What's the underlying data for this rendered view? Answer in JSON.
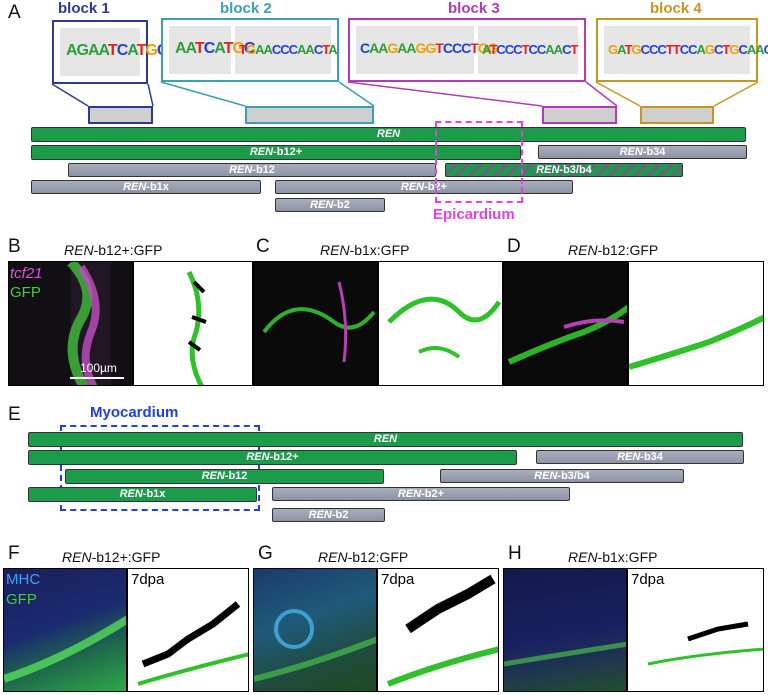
{
  "panelA": {
    "letter": "A",
    "blocks": [
      {
        "title": "block 1",
        "color": "#2b3a97",
        "seqs": [
          "AGAATCATGCT"
        ]
      },
      {
        "title": "block 2",
        "color": "#3aa0b4",
        "seqs": [
          "AATCATGC",
          "TGAACCCAACTA"
        ]
      },
      {
        "title": "block 3",
        "color": "#b03ab8",
        "seqs": [
          "CAAGAAGGTCCCTGG",
          "ATCCCTCCAACT"
        ]
      },
      {
        "title": "block 4",
        "color": "#c8961e",
        "seqs": [
          "GATGCCCTTCCAGCTGCAACC"
        ]
      }
    ],
    "bars": {
      "ren": "REN",
      "b12plus": "REN-b12+",
      "b34": "REN-b34",
      "b12": "REN-b12",
      "b3b4": "REN-b3/b4",
      "b1x": "REN-b1x",
      "b2plus": "REN-b2+",
      "b2": "REN-b2"
    },
    "epicardium_label": "Epicardium",
    "epicardium_color": "#e640e6"
  },
  "panelB": {
    "letter": "B",
    "title_italic": "REN",
    "title_rest": "-b12+:GFP",
    "channel1": "tcf21",
    "channel2": "GFP",
    "scale": "100µm"
  },
  "panelC": {
    "letter": "C",
    "title_italic": "REN",
    "title_rest": "-b1x:GFP"
  },
  "panelD": {
    "letter": "D",
    "title_italic": "REN",
    "title_rest": "-b12:GFP"
  },
  "panelE": {
    "letter": "E",
    "myocardium_label": "Myocardium",
    "myocardium_color": "#1f3fe0",
    "bars": {
      "ren": "REN",
      "b12plus": "REN-b12+",
      "b34": "REN-b34",
      "b12": "REN-b12",
      "b3b4": "REN-b3/b4",
      "b1x": "REN-b1x",
      "b2plus": "REN-b2+",
      "b2": "REN-b2"
    }
  },
  "panelF": {
    "letter": "F",
    "title_italic": "REN",
    "title_rest": "-b12+:GFP",
    "channel1": "MHC",
    "channel2": "GFP",
    "tag": "7dpa"
  },
  "panelG": {
    "letter": "G",
    "title_italic": "REN",
    "title_rest": "-b12:GFP",
    "tag": "7dpa"
  },
  "panelH": {
    "letter": "H",
    "title_italic": "REN",
    "title_rest": "-b1x:GFP",
    "tag": "7dpa"
  }
}
